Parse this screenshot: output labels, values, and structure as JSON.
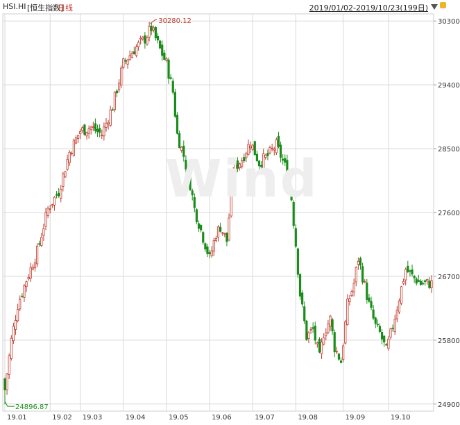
{
  "header": {
    "symbol": "HSI.HI",
    "name": "[恒生指数]",
    "period": "日线",
    "range": "2019/01/02-2019/10/23(199日)"
  },
  "watermark": "Wind",
  "colors": {
    "up": "#c0392b",
    "down": "#1a8c1a",
    "grid": "#d8d8d8",
    "text": "#333333",
    "max_label": "#c0392b",
    "min_label": "#1a8c1a"
  },
  "chart_data": {
    "type": "candlestick",
    "title": "HSI.HI [恒生指数] 日线",
    "date_range": "2019/01/02-2019/10/23",
    "trading_days": 199,
    "ylim": [
      24800,
      30400
    ],
    "y_ticks": [
      24900,
      25800,
      26700,
      27600,
      28500,
      29400,
      30300
    ],
    "x_ticks": [
      "19.01",
      "19.02",
      "19.03",
      "19.04",
      "19.05",
      "19.06",
      "19.07",
      "19.08",
      "19.09",
      "19.10"
    ],
    "x_tick_index": [
      0,
      21,
      35,
      55,
      75,
      95,
      115,
      135,
      157,
      178
    ],
    "grid": true,
    "annotations": [
      {
        "type": "max",
        "label": "30280.12",
        "value": 30280.12,
        "index": 68
      },
      {
        "type": "min",
        "label": "24896.87",
        "value": 24896.87,
        "index": 0
      }
    ],
    "waypoints": [
      [
        0,
        25100
      ],
      [
        3,
        25800
      ],
      [
        6,
        26300
      ],
      [
        10,
        26650
      ],
      [
        15,
        27050
      ],
      [
        20,
        27650
      ],
      [
        25,
        27900
      ],
      [
        30,
        28450
      ],
      [
        35,
        28750
      ],
      [
        40,
        28800
      ],
      [
        45,
        28700
      ],
      [
        50,
        29100
      ],
      [
        55,
        29700
      ],
      [
        60,
        29900
      ],
      [
        65,
        30050
      ],
      [
        68,
        30200
      ],
      [
        72,
        29900
      ],
      [
        75,
        29700
      ],
      [
        78,
        29300
      ],
      [
        80,
        28700
      ],
      [
        83,
        28400
      ],
      [
        86,
        28000
      ],
      [
        88,
        27650
      ],
      [
        92,
        27250
      ],
      [
        95,
        26950
      ],
      [
        98,
        27300
      ],
      [
        100,
        27400
      ],
      [
        103,
        27200
      ],
      [
        106,
        28200
      ],
      [
        110,
        28350
      ],
      [
        114,
        28600
      ],
      [
        118,
        28300
      ],
      [
        122,
        28400
      ],
      [
        126,
        28550
      ],
      [
        130,
        28250
      ],
      [
        133,
        27800
      ],
      [
        135,
        27150
      ],
      [
        137,
        26450
      ],
      [
        140,
        25850
      ],
      [
        143,
        25950
      ],
      [
        146,
        25550
      ],
      [
        148,
        25900
      ],
      [
        151,
        26100
      ],
      [
        153,
        25700
      ],
      [
        156,
        25500
      ],
      [
        159,
        26300
      ],
      [
        162,
        26600
      ],
      [
        164,
        26950
      ],
      [
        166,
        26700
      ],
      [
        169,
        26300
      ],
      [
        172,
        26000
      ],
      [
        174,
        25900
      ],
      [
        177,
        25650
      ],
      [
        180,
        26000
      ],
      [
        183,
        26400
      ],
      [
        186,
        26800
      ],
      [
        189,
        26700
      ],
      [
        193,
        26600
      ]
    ]
  }
}
